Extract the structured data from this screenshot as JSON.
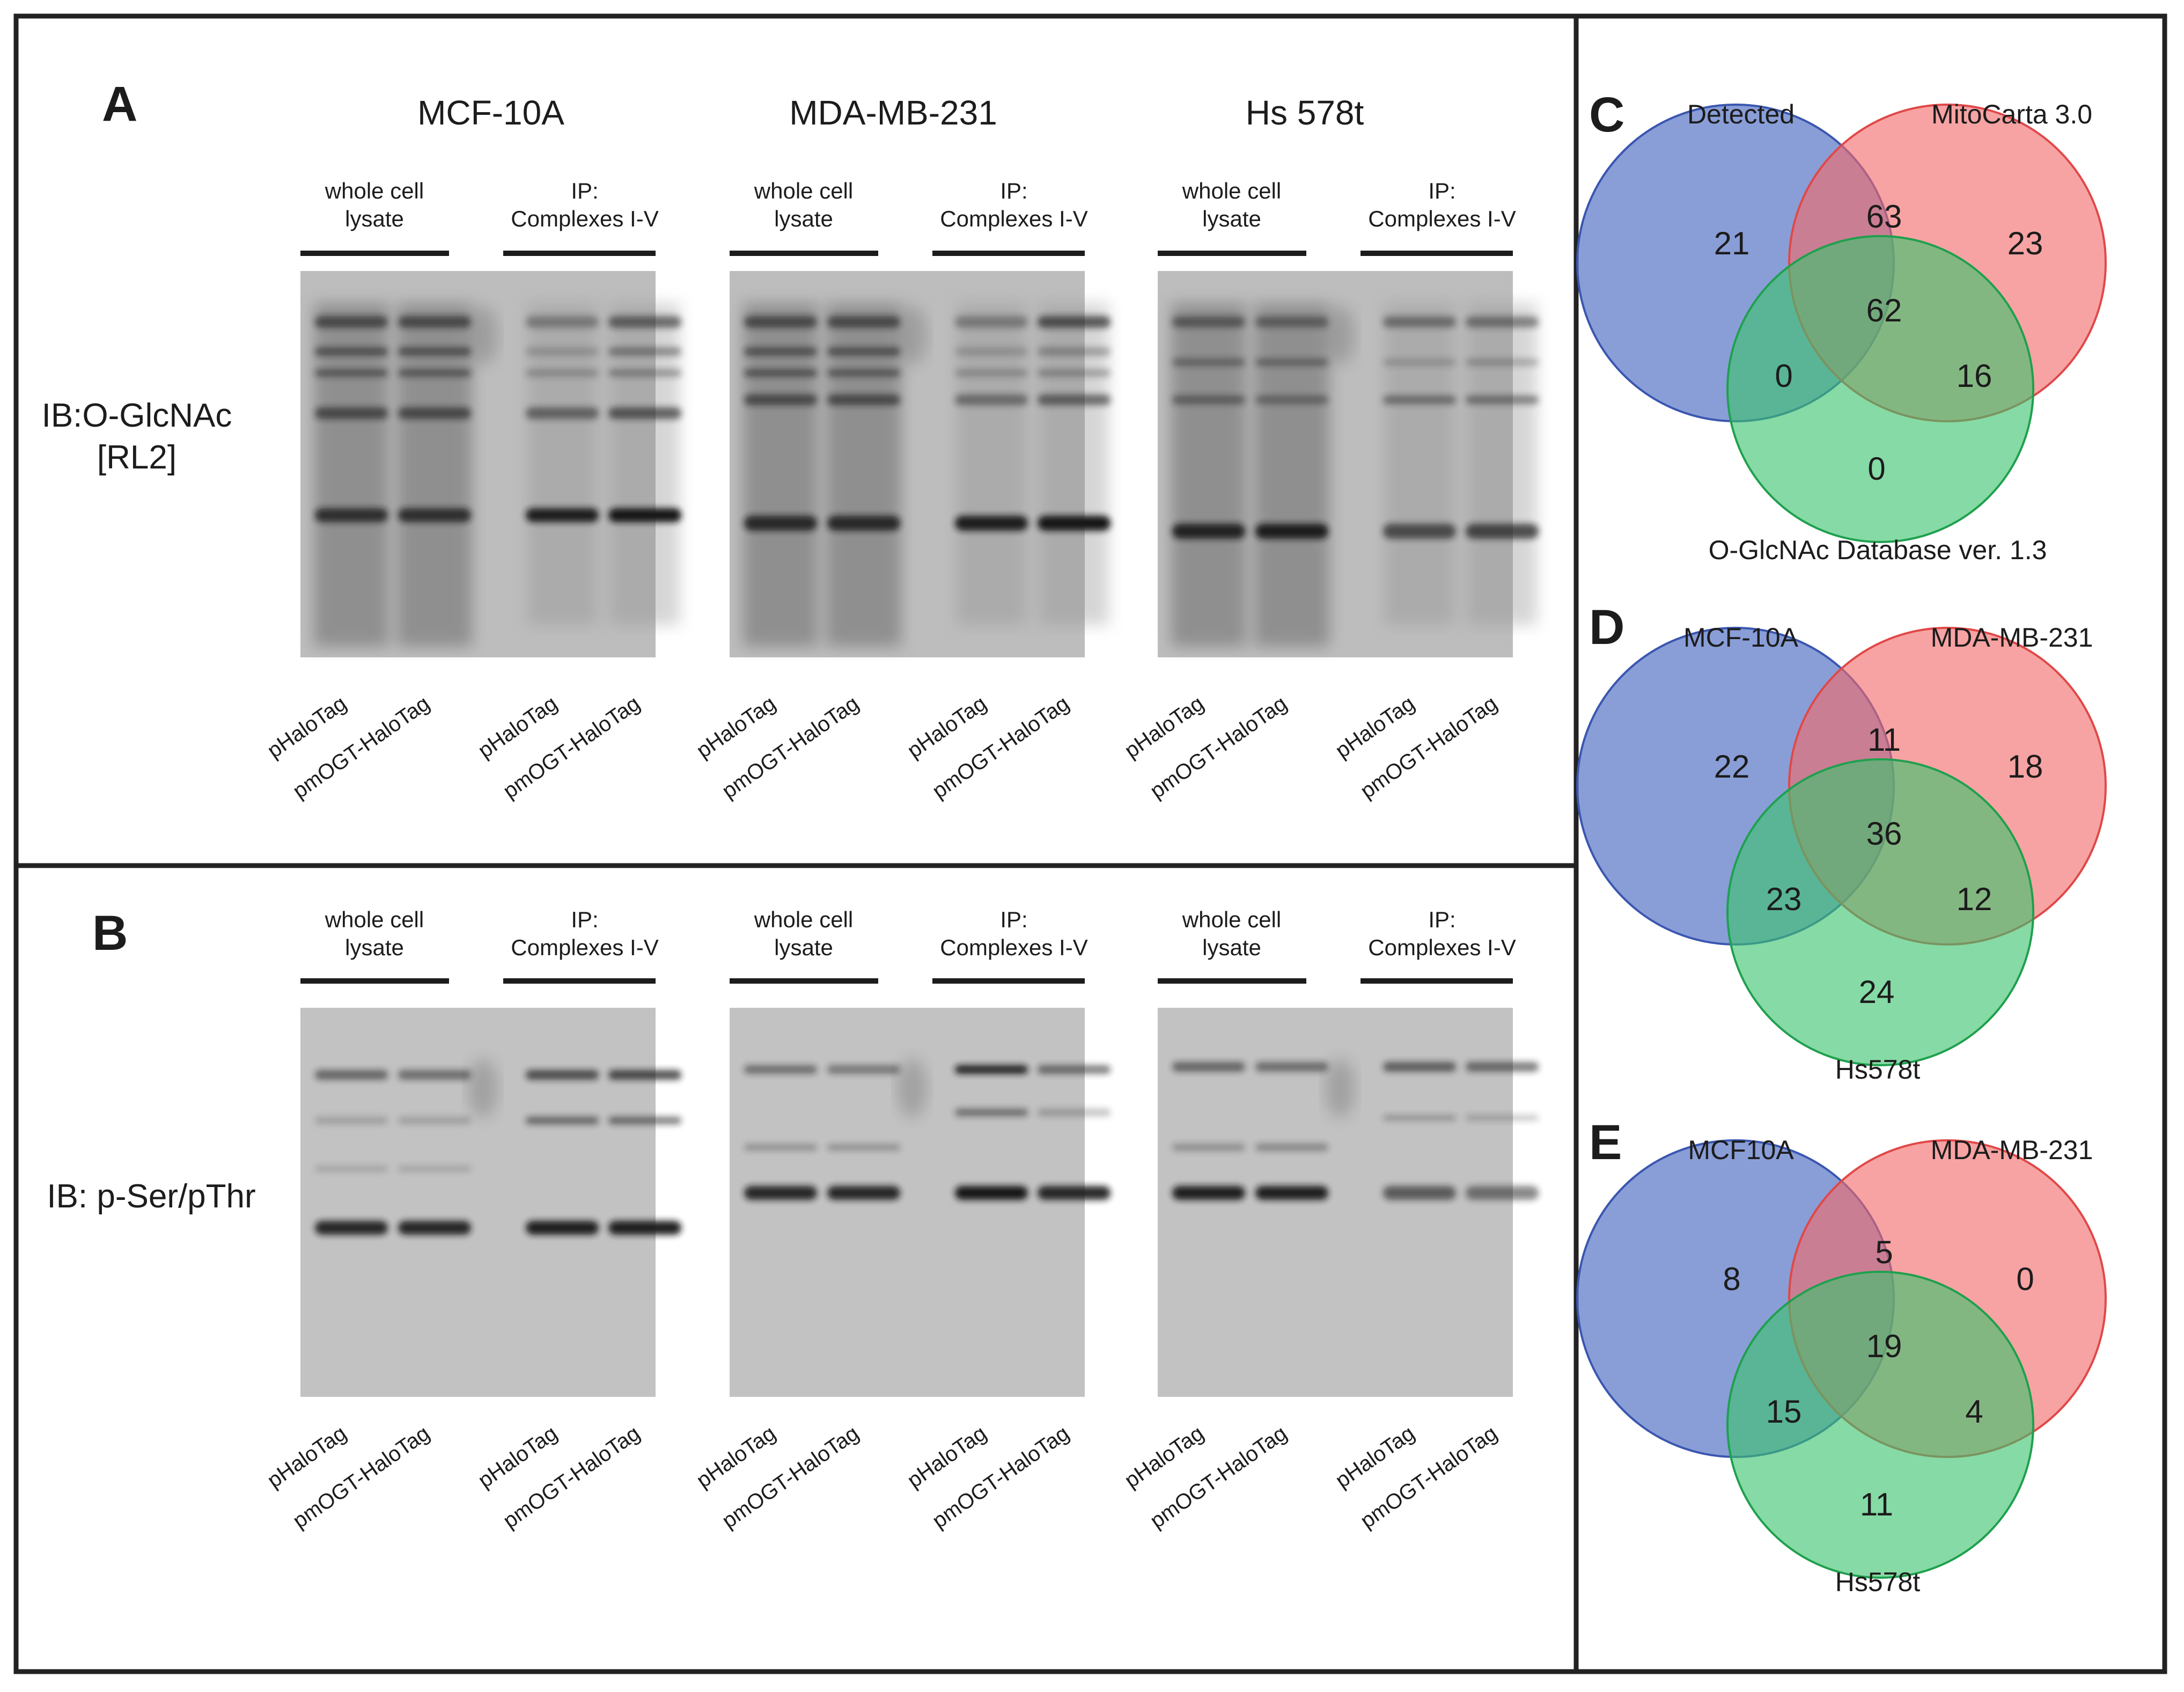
{
  "panel_A": {
    "letter": "A",
    "cell_lines": [
      "MCF-10A",
      "MDA-MB-231",
      "Hs 578t"
    ],
    "group_labels": {
      "whole_cell": "whole cell\nlysate",
      "ip": "IP:\nComplexes I-V"
    },
    "antibody_label": "IB:O-GlcNAc\n[RL2]",
    "lane_labels": [
      "pHaloTag",
      "pmOGT-HaloTag",
      "pHaloTag",
      "pmOGT-HaloTag"
    ]
  },
  "panel_B": {
    "letter": "B",
    "group_labels": {
      "whole_cell": "whole cell\nlysate",
      "ip": "IP:\nComplexes I-V"
    },
    "antibody_label": "IB: p-Ser/pThr",
    "lane_labels": [
      "pHaloTag",
      "pmOGT-HaloTag",
      "pHaloTag",
      "pmOGT-HaloTag"
    ]
  },
  "venns": [
    {
      "letter": "C",
      "set_labels": [
        "Detected",
        "MitoCarta 3.0",
        "O-GlcNAc Database ver. 1.3"
      ],
      "counts": {
        "only_1": "21",
        "only_2": "23",
        "only_3": "0",
        "s12": "63",
        "s13": "0",
        "s23": "16",
        "s123": "62"
      }
    },
    {
      "letter": "D",
      "set_labels": [
        "MCF-10A",
        "MDA-MB-231",
        "Hs578t"
      ],
      "counts": {
        "only_1": "22",
        "only_2": "18",
        "only_3": "24",
        "s12": "11",
        "s13": "23",
        "s23": "12",
        "s123": "36"
      }
    },
    {
      "letter": "E",
      "set_labels": [
        "MCF10A",
        "MDA-MB-231",
        "Hs578t"
      ],
      "counts": {
        "only_1": "8",
        "only_2": "0",
        "only_3": "11",
        "s12": "5",
        "s13": "15",
        "s23": "4",
        "s123": "19"
      }
    }
  ],
  "colors": {
    "set1": "#5b79c8",
    "set2": "#f26b6b",
    "set3": "#3cc46e",
    "set1_stroke": "#3a56b0",
    "set2_stroke": "#e04848",
    "set3_stroke": "#1fa04e",
    "border": "#222222",
    "blot_bg": "#b9b9b9",
    "band": "#141414"
  }
}
